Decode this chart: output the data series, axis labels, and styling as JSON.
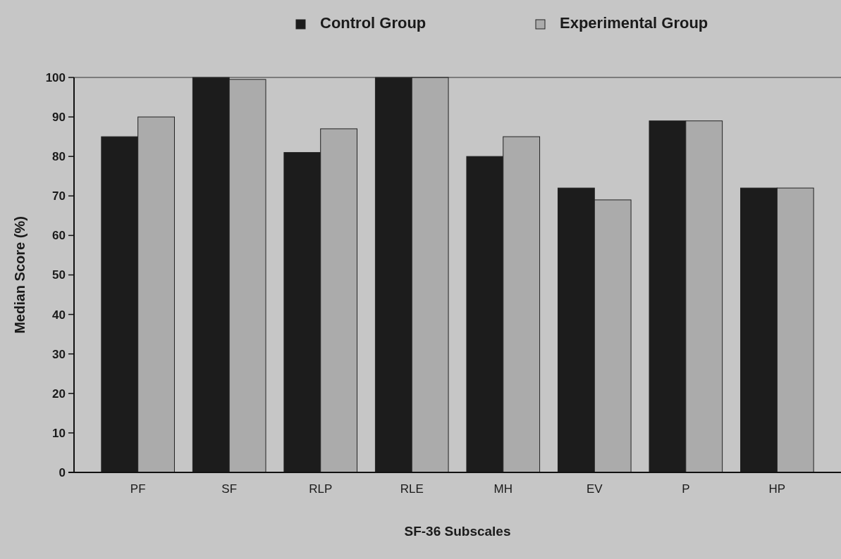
{
  "chart_data": {
    "type": "bar",
    "xlabel": "SF-36 Subscales",
    "ylabel": "Median Score (%)",
    "categories": [
      "PF",
      "SF",
      "RLP",
      "RLE",
      "MH",
      "EV",
      "P",
      "HP"
    ],
    "series": [
      {
        "name": "Control Group",
        "color": "#1c1c1c",
        "values": [
          85,
          100,
          81,
          100,
          80,
          72,
          89,
          72
        ]
      },
      {
        "name": "Experimental Group",
        "color": "#ababab",
        "values": [
          90,
          99.5,
          87,
          100,
          85,
          69,
          89,
          72
        ]
      }
    ],
    "ylim": [
      0,
      100
    ],
    "yticks": [
      0,
      10,
      20,
      30,
      40,
      50,
      60,
      70,
      80,
      90,
      100
    ],
    "legend": "top",
    "grid": false
  }
}
